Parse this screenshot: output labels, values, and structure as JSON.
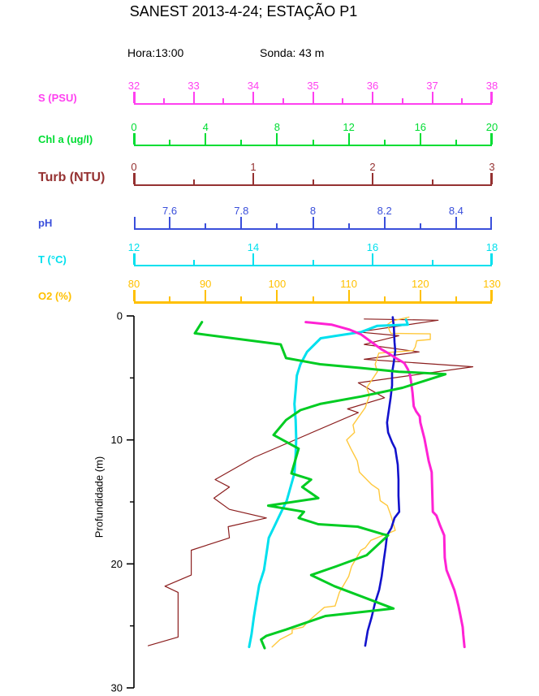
{
  "header": {
    "title": "SANEST 2013-4-24; ESTAÇÃO P1",
    "hora": "Hora:13:00",
    "sonda": "Sonda: 43 m"
  },
  "chart_data": {
    "type": "line",
    "subtype": "vertical-depth-profile",
    "title": "SANEST 2013-4-24; ESTAÇÃO P1",
    "grid": false,
    "legend_position": "stacked-top-axes",
    "depth_axis": {
      "label": "Profundidade (m)",
      "unit": "m",
      "min": 0,
      "max": 30,
      "major_ticks": [
        {
          "value": 0,
          "label": "0"
        },
        {
          "value": 10,
          "label": "10"
        },
        {
          "value": 20,
          "label": "20"
        },
        {
          "value": 30,
          "label": "30"
        }
      ],
      "minor_ticks": [
        5,
        15,
        25
      ]
    },
    "axes": [
      {
        "id": "salinity",
        "label": "S (PSU)",
        "color": "#FF40F0",
        "min": 32,
        "max": 38,
        "major_ticks": [
          {
            "value": 32,
            "label": "32"
          },
          {
            "value": 33,
            "label": "33"
          },
          {
            "value": 34,
            "label": "34"
          },
          {
            "value": 35,
            "label": "35"
          },
          {
            "value": 36,
            "label": "36"
          },
          {
            "value": 37,
            "label": "37"
          },
          {
            "value": 38,
            "label": "38"
          }
        ],
        "minor_ticks": [
          32.5,
          33.5,
          34.5,
          35.5,
          36.5,
          37.5
        ]
      },
      {
        "id": "chl",
        "label": "Chl a (ug/l)",
        "color": "#00DD33",
        "min": 0,
        "max": 20,
        "major_ticks": [
          {
            "value": 0,
            "label": "0"
          },
          {
            "value": 4,
            "label": "4"
          },
          {
            "value": 8,
            "label": "8"
          },
          {
            "value": 12,
            "label": "12"
          },
          {
            "value": 16,
            "label": "16"
          },
          {
            "value": 20,
            "label": "20"
          }
        ],
        "minor_ticks": [
          2,
          6,
          10,
          14,
          18
        ]
      },
      {
        "id": "turbidity",
        "label": "Turb (NTU)",
        "color": "#953131",
        "min": 0,
        "max": 3,
        "major_ticks": [
          {
            "value": 0,
            "label": "0"
          },
          {
            "value": 1,
            "label": "1"
          },
          {
            "value": 2,
            "label": "2"
          },
          {
            "value": 3,
            "label": "3"
          }
        ],
        "minor_ticks": [
          0.5,
          1.5,
          2.5
        ]
      },
      {
        "id": "ph",
        "label": "pH",
        "color": "#3A4FDB",
        "min": 7.5,
        "max": 8.5,
        "major_ticks": [
          {
            "value": 7.6,
            "label": "7.6"
          },
          {
            "value": 7.8,
            "label": "7.8"
          },
          {
            "value": 8.0,
            "label": "8"
          },
          {
            "value": 8.2,
            "label": "8.2"
          },
          {
            "value": 8.4,
            "label": "8.4"
          }
        ],
        "minor_ticks": [
          7.7,
          7.9,
          8.1,
          8.3
        ]
      },
      {
        "id": "temperature",
        "label": "T (°C)",
        "color": "#00E0EE",
        "min": 12,
        "max": 18,
        "major_ticks": [
          {
            "value": 12,
            "label": "12"
          },
          {
            "value": 14,
            "label": "14"
          },
          {
            "value": 16,
            "label": "16"
          },
          {
            "value": 18,
            "label": "18"
          }
        ],
        "minor_ticks": [
          13,
          15,
          17
        ]
      },
      {
        "id": "oxygen",
        "label": "O2 (%)",
        "color": "#FFC000",
        "min": 80,
        "max": 130,
        "major_ticks": [
          {
            "value": 80,
            "label": "80"
          },
          {
            "value": 90,
            "label": "90"
          },
          {
            "value": 100,
            "label": "100"
          },
          {
            "value": 110,
            "label": "110"
          },
          {
            "value": 120,
            "label": "120"
          },
          {
            "value": 130,
            "label": "130"
          }
        ],
        "minor_ticks": [
          85,
          95,
          105,
          115,
          125
        ]
      }
    ],
    "series": [
      {
        "id": "turbidity",
        "label": "Turb (NTU)",
        "axis": "turbidity",
        "color": "#8B1E1E",
        "width": 1.2,
        "points": [
          [
            0.25,
            1.93
          ],
          [
            0.35,
            2.55
          ],
          [
            1.3,
            1.88
          ],
          [
            1.6,
            2.22
          ],
          [
            2.3,
            1.93
          ],
          [
            2.9,
            2.39
          ],
          [
            3.5,
            1.93
          ],
          [
            4.1,
            2.84
          ],
          [
            5.4,
            1.88
          ],
          [
            6.6,
            2.1
          ],
          [
            7.5,
            1.79
          ],
          [
            7.8,
            1.88
          ],
          [
            11.4,
            1.01
          ],
          [
            13.2,
            0.68
          ],
          [
            13.8,
            0.8
          ],
          [
            14.7,
            0.67
          ],
          [
            15.6,
            0.8
          ],
          [
            16.3,
            1.11
          ],
          [
            17.0,
            0.79
          ],
          [
            17.9,
            0.8
          ],
          [
            18.9,
            0.48
          ],
          [
            20.9,
            0.48
          ],
          [
            21.8,
            0.26
          ],
          [
            22.3,
            0.37
          ],
          [
            25.9,
            0.37
          ],
          [
            26.6,
            0.12
          ]
        ]
      },
      {
        "id": "oxygen",
        "label": "O2 (%)",
        "axis": "oxygen",
        "color": "#FFC83C",
        "width": 1.4,
        "points": [
          [
            0.1,
            118.4
          ],
          [
            0.4,
            116.1
          ],
          [
            0.7,
            115.4
          ],
          [
            1.2,
            115.7
          ],
          [
            1.4,
            115.9
          ],
          [
            1.45,
            121.4
          ],
          [
            1.9,
            121.4
          ],
          [
            2.0,
            119.5
          ],
          [
            2.5,
            119.3
          ],
          [
            2.8,
            119.0
          ],
          [
            3.0,
            114.2
          ],
          [
            3.9,
            113.7
          ],
          [
            4.5,
            114.0
          ],
          [
            5.8,
            112.5
          ],
          [
            6.4,
            112.9
          ],
          [
            7.4,
            112.3
          ],
          [
            8.3,
            111.2
          ],
          [
            8.8,
            110.6
          ],
          [
            9.4,
            110.8
          ],
          [
            10.0,
            109.7
          ],
          [
            10.7,
            110.3
          ],
          [
            11.7,
            111.2
          ],
          [
            12.6,
            111.5
          ],
          [
            13.6,
            113.2
          ],
          [
            14.0,
            114.2
          ],
          [
            14.9,
            114.4
          ],
          [
            15.3,
            115.4
          ],
          [
            16.1,
            115.9
          ],
          [
            17.3,
            116.5
          ],
          [
            18.1,
            113.1
          ],
          [
            18.7,
            112.3
          ],
          [
            18.9,
            111.7
          ],
          [
            20.2,
            110.4
          ],
          [
            21.0,
            110.0
          ],
          [
            21.5,
            109.5
          ],
          [
            22.3,
            108.7
          ],
          [
            23.4,
            108.1
          ],
          [
            23.5,
            106.6
          ],
          [
            24.6,
            104.4
          ],
          [
            25.1,
            103.6
          ],
          [
            25.3,
            102.1
          ],
          [
            25.6,
            102.1
          ],
          [
            26.1,
            100.4
          ],
          [
            26.7,
            99.3
          ]
        ]
      },
      {
        "id": "ph",
        "label": "pH",
        "axis": "ph",
        "color": "#1212CC",
        "width": 2.6,
        "points": [
          [
            0.1,
            8.223
          ],
          [
            0.9,
            8.226
          ],
          [
            2.1,
            8.228
          ],
          [
            2.8,
            8.23
          ],
          [
            3.7,
            8.226
          ],
          [
            4.6,
            8.221
          ],
          [
            5.6,
            8.221
          ],
          [
            6.6,
            8.217
          ],
          [
            7.6,
            8.212
          ],
          [
            8.6,
            8.207
          ],
          [
            9.4,
            8.21
          ],
          [
            10.2,
            8.221
          ],
          [
            10.7,
            8.23
          ],
          [
            12.0,
            8.237
          ],
          [
            13.2,
            8.239
          ],
          [
            14.5,
            8.239
          ],
          [
            15.8,
            8.241
          ],
          [
            16.3,
            8.228
          ],
          [
            17.1,
            8.219
          ],
          [
            17.7,
            8.207
          ],
          [
            18.7,
            8.203
          ],
          [
            19.7,
            8.198
          ],
          [
            21.0,
            8.192
          ],
          [
            22.1,
            8.185
          ],
          [
            23.2,
            8.173
          ],
          [
            24.3,
            8.164
          ],
          [
            25.4,
            8.153
          ],
          [
            26.6,
            8.146
          ]
        ]
      },
      {
        "id": "temperature",
        "label": "T (°C)",
        "axis": "temperature",
        "color": "#00E0EE",
        "width": 3,
        "points": [
          [
            0.3,
            16.56
          ],
          [
            0.7,
            16.59
          ],
          [
            0.8,
            16.08
          ],
          [
            1.3,
            15.81
          ],
          [
            1.6,
            15.4
          ],
          [
            1.8,
            15.13
          ],
          [
            2.9,
            14.9
          ],
          [
            3.9,
            14.79
          ],
          [
            4.8,
            14.73
          ],
          [
            6.0,
            14.71
          ],
          [
            7.1,
            14.69
          ],
          [
            8.4,
            14.71
          ],
          [
            9.9,
            14.72
          ],
          [
            11.2,
            14.71
          ],
          [
            12.7,
            14.69
          ],
          [
            14.9,
            14.56
          ],
          [
            16.2,
            14.43
          ],
          [
            17.2,
            14.33
          ],
          [
            17.9,
            14.26
          ],
          [
            18.9,
            14.23
          ],
          [
            20.5,
            14.18
          ],
          [
            21.7,
            14.1
          ],
          [
            23.4,
            14.04
          ],
          [
            24.3,
            14.01
          ],
          [
            25.7,
            13.97
          ],
          [
            26.7,
            13.93
          ]
        ]
      },
      {
        "id": "salinity",
        "label": "S (PSU)",
        "axis": "salinity",
        "color": "#FF22D4",
        "width": 3,
        "points": [
          [
            0.5,
            34.88
          ],
          [
            0.7,
            35.31
          ],
          [
            1.1,
            35.61
          ],
          [
            1.5,
            35.81
          ],
          [
            2.0,
            35.95
          ],
          [
            2.7,
            36.15
          ],
          [
            3.0,
            36.26
          ],
          [
            3.4,
            36.39
          ],
          [
            3.8,
            36.53
          ],
          [
            4.3,
            36.59
          ],
          [
            4.8,
            36.63
          ],
          [
            5.5,
            36.65
          ],
          [
            6.2,
            36.67
          ],
          [
            7.3,
            36.69
          ],
          [
            7.7,
            36.73
          ],
          [
            8.1,
            36.79
          ],
          [
            8.6,
            36.8
          ],
          [
            9.9,
            36.87
          ],
          [
            11.7,
            36.94
          ],
          [
            12.6,
            36.99
          ],
          [
            15.8,
            37.01
          ],
          [
            16.1,
            37.07
          ],
          [
            16.9,
            37.13
          ],
          [
            17.7,
            37.2
          ],
          [
            19.5,
            37.21
          ],
          [
            20.5,
            37.24
          ],
          [
            21.0,
            37.28
          ],
          [
            22.1,
            37.37
          ],
          [
            22.8,
            37.41
          ],
          [
            23.4,
            37.44
          ],
          [
            24.1,
            37.47
          ],
          [
            25.1,
            37.51
          ],
          [
            25.7,
            37.52
          ],
          [
            26.7,
            37.54
          ]
        ]
      },
      {
        "id": "chl",
        "label": "Chl a (ug/l)",
        "axis": "chl",
        "color": "#00CC22",
        "width": 3,
        "points": [
          [
            0.5,
            3.8
          ],
          [
            1.4,
            3.4
          ],
          [
            2.3,
            8.2
          ],
          [
            3.4,
            8.5
          ],
          [
            3.9,
            10.4
          ],
          [
            4.2,
            12.7
          ],
          [
            4.5,
            14.8
          ],
          [
            4.6,
            16.2
          ],
          [
            4.7,
            17.4
          ],
          [
            5.8,
            15.0
          ],
          [
            6.5,
            12.7
          ],
          [
            7.1,
            10.4
          ],
          [
            7.6,
            9.3
          ],
          [
            8.4,
            8.5
          ],
          [
            9.6,
            7.8
          ],
          [
            10.7,
            9.2
          ],
          [
            12.7,
            8.8
          ],
          [
            13.2,
            9.9
          ],
          [
            13.8,
            9.4
          ],
          [
            14.7,
            10.3
          ],
          [
            15.3,
            7.5
          ],
          [
            15.8,
            9.5
          ],
          [
            16.3,
            9.2
          ],
          [
            16.8,
            10.3
          ],
          [
            17.0,
            12.5
          ],
          [
            17.6,
            13.9
          ],
          [
            17.7,
            14.2
          ],
          [
            19.3,
            13.0
          ],
          [
            20.2,
            11.3
          ],
          [
            20.9,
            9.9
          ],
          [
            21.8,
            11.2
          ],
          [
            23.6,
            14.5
          ],
          [
            24.2,
            10.7
          ],
          [
            25.3,
            8.5
          ],
          [
            25.8,
            7.4
          ],
          [
            26.1,
            7.1
          ],
          [
            26.8,
            7.3
          ]
        ]
      }
    ]
  }
}
